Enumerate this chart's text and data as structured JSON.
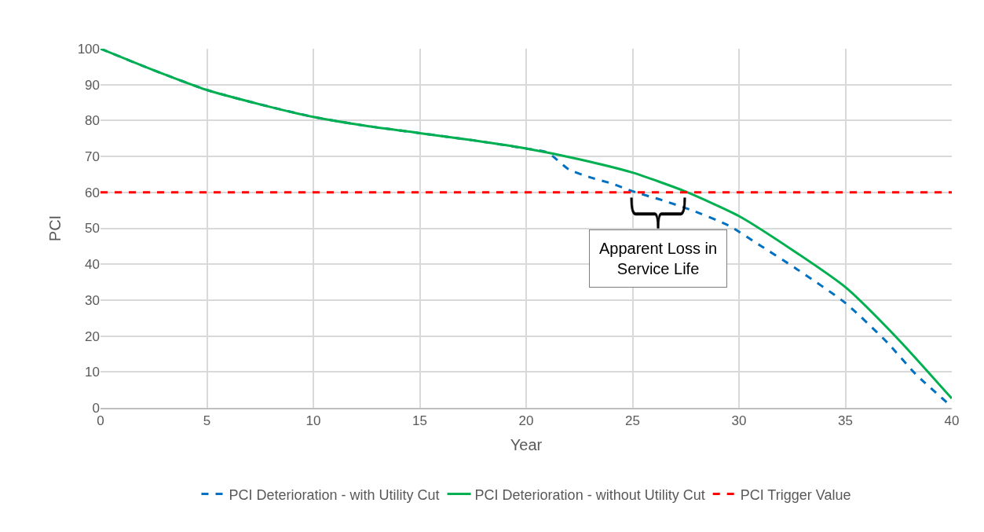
{
  "chart_data": {
    "type": "line",
    "xlabel": "Year",
    "ylabel": "PCI",
    "series": [
      {
        "name": "PCI Deterioration - with Utility Cut",
        "color": "#0070c0",
        "line_style": "dashed",
        "x": [
          0,
          2.5,
          5,
          7.5,
          10,
          12.5,
          15,
          17.5,
          20,
          21,
          22,
          23,
          24,
          25,
          26.4,
          27.7,
          29.5,
          31,
          32.7,
          35,
          37,
          38.3,
          40
        ],
        "values": [
          100,
          94,
          88.5,
          84.5,
          81,
          78.5,
          76.5,
          74.5,
          72.2,
          71.1,
          66.4,
          64.2,
          62.5,
          60.3,
          57.8,
          55.2,
          50.8,
          45.2,
          38.7,
          29.2,
          18,
          9.4,
          0.3
        ]
      },
      {
        "name": "PCI Deterioration - without Utility Cut",
        "color": "#00b050",
        "line_style": "solid",
        "x": [
          0,
          2.5,
          5,
          7.5,
          10,
          12.5,
          15,
          17.5,
          20,
          22.5,
          25,
          27.5,
          30,
          32.5,
          35,
          37.5,
          40
        ],
        "values": [
          100,
          94,
          88.5,
          84.5,
          81,
          78.5,
          76.5,
          74.5,
          72.2,
          69.2,
          65.5,
          60.2,
          53.4,
          44,
          33.6,
          19,
          2.6
        ]
      }
    ],
    "ref_lines": [
      {
        "axis": "y",
        "value": 60,
        "label": "PCI Trigger Value",
        "color": "#ff0000",
        "line_style": "dashed"
      }
    ],
    "annotations": [
      "Apparent Loss in\nService Life"
    ],
    "xlim": [
      0,
      40
    ],
    "xticks": [
      0,
      5,
      10,
      15,
      20,
      25,
      30,
      35,
      40
    ],
    "ylim": [
      0,
      100
    ],
    "yticks": [
      0,
      10,
      20,
      30,
      40,
      50,
      60,
      70,
      80,
      90,
      100
    ],
    "grid": true,
    "legend": "bottom",
    "marker": "none"
  }
}
